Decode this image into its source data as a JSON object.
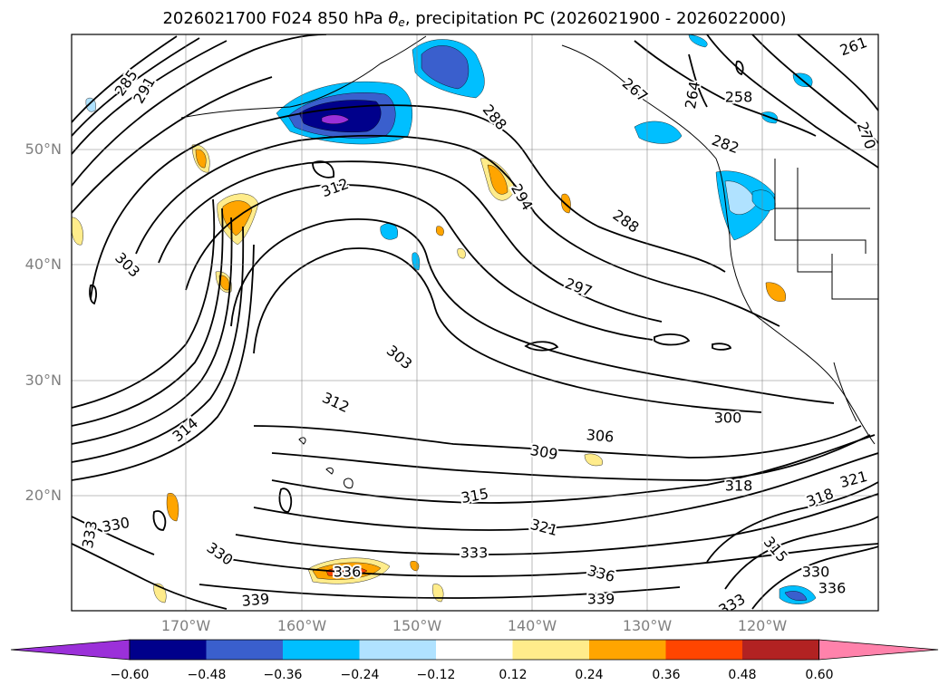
{
  "title": {
    "prefix": "2026021700 F024 850 hPa ",
    "symbol": "θ",
    "subscript": "e",
    "suffix": ", precipitation PC (2026021900 - 2026022000)"
  },
  "lat_labels": [
    "50°N",
    "40°N",
    "30°N",
    "20°N"
  ],
  "lon_labels": [
    "170°W",
    "160°W",
    "150°W",
    "140°W",
    "130°W",
    "120°W"
  ],
  "contour_labels": [
    "285",
    "288",
    "291",
    "294",
    "264",
    "258",
    "261",
    "267",
    "270",
    "282",
    "312",
    "288",
    "297",
    "303",
    "303",
    "312",
    "314",
    "306",
    "300",
    "309",
    "315",
    "318",
    "321",
    "318",
    "321",
    "330",
    "333",
    "330",
    "333",
    "336",
    "336",
    "339",
    "339",
    "315",
    "330",
    "336",
    "333"
  ],
  "colorbar": {
    "ticks": [
      "−0.60",
      "−0.48",
      "−0.36",
      "−0.24",
      "−0.12",
      "0.12",
      "0.24",
      "0.36",
      "0.48",
      "0.60"
    ],
    "colors": [
      "#9b30d9",
      "#00008b",
      "#3a5fcd",
      "#00bfff",
      "#b0e2ff",
      "#ffffff",
      "#ffec8b",
      "#ffa500",
      "#ff4500",
      "#b22222",
      "#ff82ab"
    ]
  },
  "map": {
    "lon_range": [
      -180,
      -110
    ],
    "lat_range": [
      10,
      60
    ],
    "contour_variable": "850 hPa equivalent potential temperature (K)",
    "shading_variable": "precipitation PC"
  }
}
